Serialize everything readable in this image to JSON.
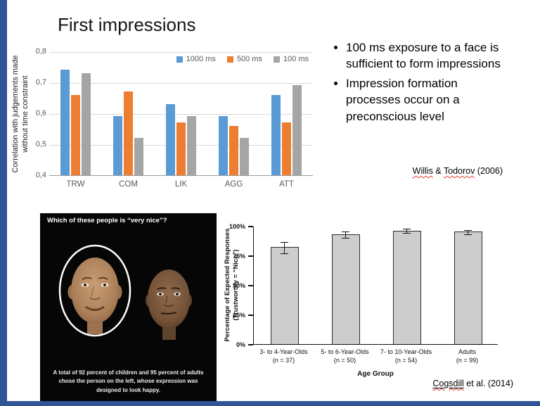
{
  "slide": {
    "title": "First impressions",
    "bullets": [
      "100 ms exposure to a face is sufficient to form impressions",
      "Impression formation processes occur on a preconscious level"
    ],
    "citation1": {
      "author1": "Willis",
      "joiner": " & ",
      "author2": "Todorov",
      "year": " (2006)"
    },
    "citation2": {
      "link": "Cogsdill",
      "rest": " et al. (2014)"
    }
  },
  "faces_figure": {
    "question": "Which of these people is “very nice”?",
    "caption": "A total of 92 percent of children and 95 percent of adults chose the person on the left, whose expression was designed to look happy.",
    "left_face": "happy-face-in-white-ellipse",
    "right_face": "neutral-darker-face"
  },
  "chart_data": [
    {
      "type": "bar",
      "title": "",
      "ylabel": "Correlation with judgements made without time constraint",
      "ylabel_lines": [
        "Correlation with judgements made",
        "without time constraint"
      ],
      "categories": [
        "TRW",
        "COM",
        "LIK",
        "AGG",
        "ATT"
      ],
      "series": [
        {
          "name": "1000 ms",
          "color": "#5B9BD5",
          "values": [
            0.74,
            0.59,
            0.63,
            0.59,
            0.66
          ]
        },
        {
          "name": "500 ms",
          "color": "#ED7D31",
          "values": [
            0.66,
            0.67,
            0.57,
            0.56,
            0.57
          ]
        },
        {
          "name": "100 ms",
          "color": "#A5A5A5",
          "values": [
            0.73,
            0.52,
            0.59,
            0.52,
            0.69
          ]
        }
      ],
      "ylim": [
        0.4,
        0.8
      ],
      "yticks": [
        0.8,
        0.7,
        0.6,
        0.5,
        0.4
      ],
      "ytick_labels": [
        "0,8",
        "0,7",
        "0,6",
        "0,5",
        "0,4"
      ],
      "grid": true,
      "legend_position": "top-right"
    },
    {
      "type": "bar",
      "ylabel": "Percentage of Expected Responses (Trustworthy = “Nice”)",
      "ylabel_lines": [
        "Percentage of Expected Responses",
        "(Trustworthy = “Nice”)"
      ],
      "xlabel": "Age Group",
      "categories": [
        "3- to 4-Year-Olds",
        "5- to 6-Year-Olds",
        "7- to 10-Year-Olds",
        "Adults"
      ],
      "n_labels": [
        "(n = 37)",
        "(n = 50)",
        "(n = 54)",
        "(n = 99)"
      ],
      "values": [
        82,
        93,
        96,
        95
      ],
      "errors": [
        5,
        3,
        2,
        2
      ],
      "bar_color": "#cdcdcd",
      "ylim": [
        0,
        100
      ],
      "ytick_labels": [
        "100%",
        "75%",
        "50%",
        "25%",
        "0%"
      ],
      "grid": false,
      "legend_position": "none"
    }
  ],
  "colors": {
    "slide_border": "#2f5597",
    "series_blue": "#5B9BD5",
    "series_orange": "#ED7D31",
    "series_gray": "#A5A5A5"
  }
}
